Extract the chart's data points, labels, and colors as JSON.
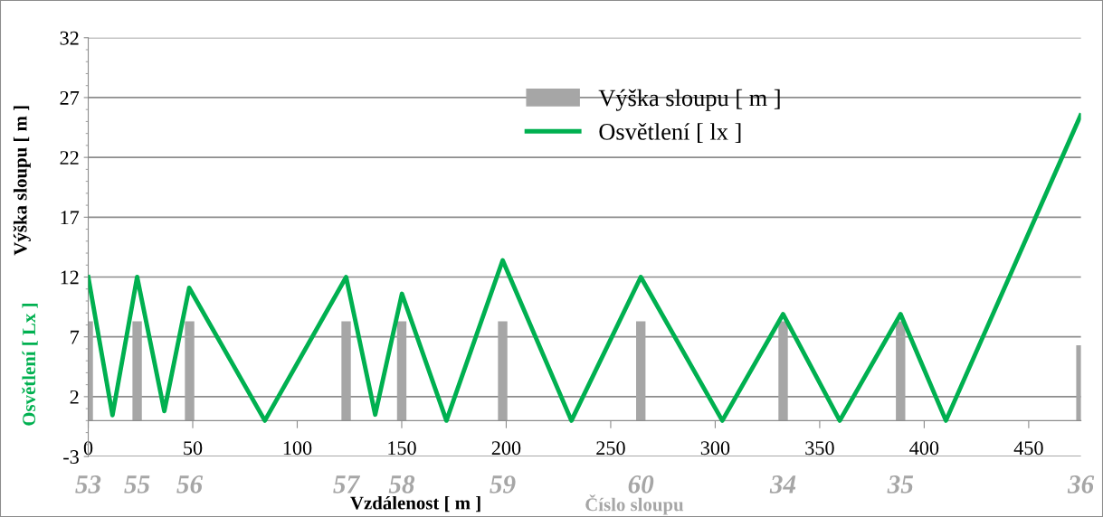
{
  "chart_data": {
    "type": "bar",
    "xlabel": "Vzdálenost [ m ]",
    "ylabel": "Výška sloupu [ m ]",
    "series": [
      {
        "name": "Výška sloupu [ m ]",
        "color": "#a6a6a6",
        "x": [
          0,
          23.4,
          48.5,
          123.4,
          150,
          198.3,
          264.4,
          332.5,
          388.7,
          475
        ],
        "values": [
          8.3,
          8.3,
          8.3,
          8.3,
          8.3,
          8.3,
          8.3,
          8.3,
          8.3,
          6.3
        ]
      },
      {
        "name": "Osvětlení [ lx ]",
        "type": "line",
        "color": "#00b050",
        "x": [
          0,
          11.6,
          23.4,
          36.4,
          48.3,
          84.5,
          123.4,
          137.3,
          150.1,
          171.4,
          198.3,
          231.2,
          264.4,
          303.4,
          332.5,
          359.6,
          388.7,
          410.4,
          474.8
        ],
        "values": [
          12,
          0.45,
          12,
          0.8,
          11.1,
          0,
          12,
          0.5,
          10.6,
          0,
          13.4,
          0,
          12,
          0,
          8.9,
          0,
          8.9,
          0,
          25.5
        ]
      }
    ],
    "xlim": [
      0,
      475
    ],
    "xticks": [
      0,
      50,
      100,
      150,
      200,
      250,
      300,
      350,
      400,
      450
    ],
    "ylim": [
      -3,
      32
    ],
    "yticks": [
      -3,
      2,
      7,
      12,
      17,
      22,
      27,
      32
    ],
    "grid": "y",
    "legend": "top",
    "marker": "none",
    "line_style": "solid",
    "annotations": [
      "Osvětlení [ Lx ]",
      "Číslo sloupu",
      "53",
      "55",
      "56",
      "57",
      "58",
      "59",
      "60",
      "34",
      "35",
      "36"
    ]
  }
}
